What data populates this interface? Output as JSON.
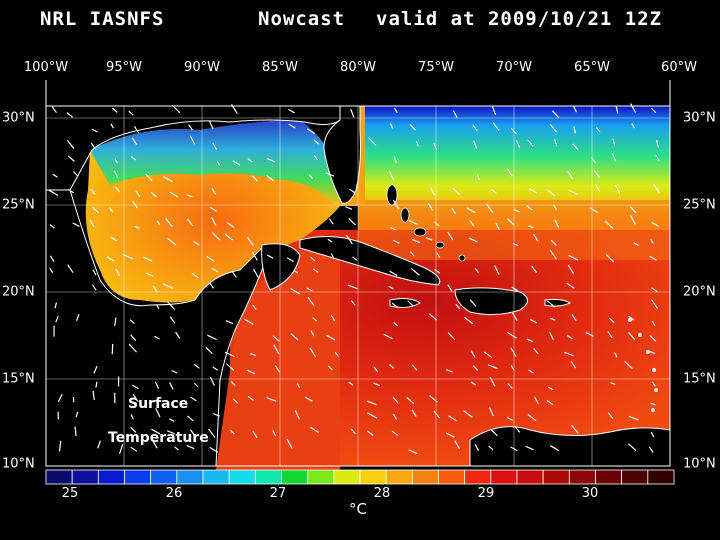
{
  "header": {
    "source": "NRL IASNFS",
    "product": "Nowcast",
    "valid": "valid at 2009/10/21 12Z"
  },
  "axes": {
    "lon_labels": [
      "100°W",
      "95°W",
      "90°W",
      "85°W",
      "80°W",
      "75°W",
      "70°W",
      "65°W",
      "60°W"
    ],
    "lat_labels": [
      "30°N",
      "25°N",
      "20°N",
      "15°N",
      "10°N"
    ]
  },
  "annotation": {
    "line1": "Surface",
    "line2": "Temperature"
  },
  "colorbar": {
    "ticks": [
      "25",
      "26",
      "27",
      "28",
      "29",
      "30"
    ],
    "unit": "°C",
    "colors": [
      "#0c0c6e",
      "#1010a0",
      "#0a1ad2",
      "#0a3cf0",
      "#1060f0",
      "#1a90f0",
      "#18b8f0",
      "#16dcea",
      "#10e8b0",
      "#10d830",
      "#7ce81a",
      "#dcea14",
      "#f8d010",
      "#f8a810",
      "#f88010",
      "#f85a10",
      "#f02810",
      "#dc1010",
      "#c80c0c",
      "#ac0808",
      "#8c0606",
      "#6a0404",
      "#4a0202",
      "#300000"
    ]
  },
  "chart_data": {
    "type": "heatmap",
    "title": "NRL IASNFS Nowcast valid at 2009/10/21 12Z",
    "variable": "Surface Temperature",
    "unit": "°C",
    "lon_range": [
      -100,
      -60
    ],
    "lat_range": [
      10,
      30
    ],
    "colorbar_range": [
      24.5,
      30.8
    ]
  }
}
